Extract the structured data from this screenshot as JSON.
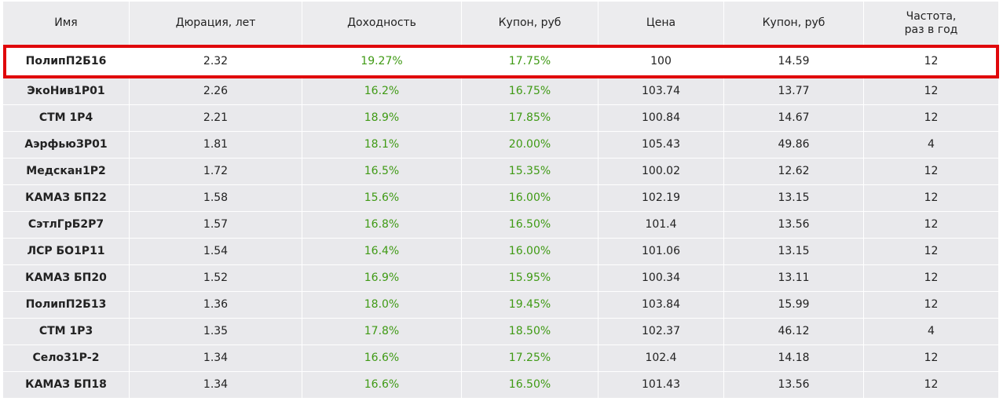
{
  "table": {
    "header": [
      "Имя",
      "Дюрация, лет",
      "Доходность",
      "Купон, руб",
      "Цена",
      "Купон, руб",
      "Частота,\nраз в год"
    ],
    "highlight_row": 0,
    "rows": [
      [
        "ПолипП2Б16",
        "2.32",
        "19.27%",
        "17.75%",
        "100",
        "14.59",
        "12"
      ],
      [
        "ЭкоНив1Р01",
        "2.26",
        "16.2%",
        "16.75%",
        "103.74",
        "13.77",
        "12"
      ],
      [
        "СТМ 1Р4",
        "2.21",
        "18.9%",
        "17.85%",
        "100.84",
        "14.67",
        "12"
      ],
      [
        "АэрфьюЗР01",
        "1.81",
        "18.1%",
        "20.00%",
        "105.43",
        "49.86",
        "4"
      ],
      [
        "Медскан1Р2",
        "1.72",
        "16.5%",
        "15.35%",
        "100.02",
        "12.62",
        "12"
      ],
      [
        "КАМАЗ БП22",
        "1.58",
        "15.6%",
        "16.00%",
        "102.19",
        "13.15",
        "12"
      ],
      [
        "СэтлГрБ2Р7",
        "1.57",
        "16.8%",
        "16.50%",
        "101.4",
        "13.56",
        "12"
      ],
      [
        "ЛСР БО1Р11",
        "1.54",
        "16.4%",
        "16.00%",
        "101.06",
        "13.15",
        "12"
      ],
      [
        "КАМАЗ БП20",
        "1.52",
        "16.9%",
        "15.95%",
        "100.34",
        "13.11",
        "12"
      ],
      [
        "ПолипП2Б13",
        "1.36",
        "18.0%",
        "19.45%",
        "103.84",
        "15.99",
        "12"
      ],
      [
        "СТМ 1Р3",
        "1.35",
        "17.8%",
        "18.50%",
        "102.37",
        "46.12",
        "4"
      ],
      [
        "Село31Р-2",
        "1.34",
        "16.6%",
        "17.25%",
        "102.4",
        "14.18",
        "12"
      ],
      [
        "КАМАЗ БП18",
        "1.34",
        "16.6%",
        "16.50%",
        "101.43",
        "13.56",
        "12"
      ]
    ]
  }
}
